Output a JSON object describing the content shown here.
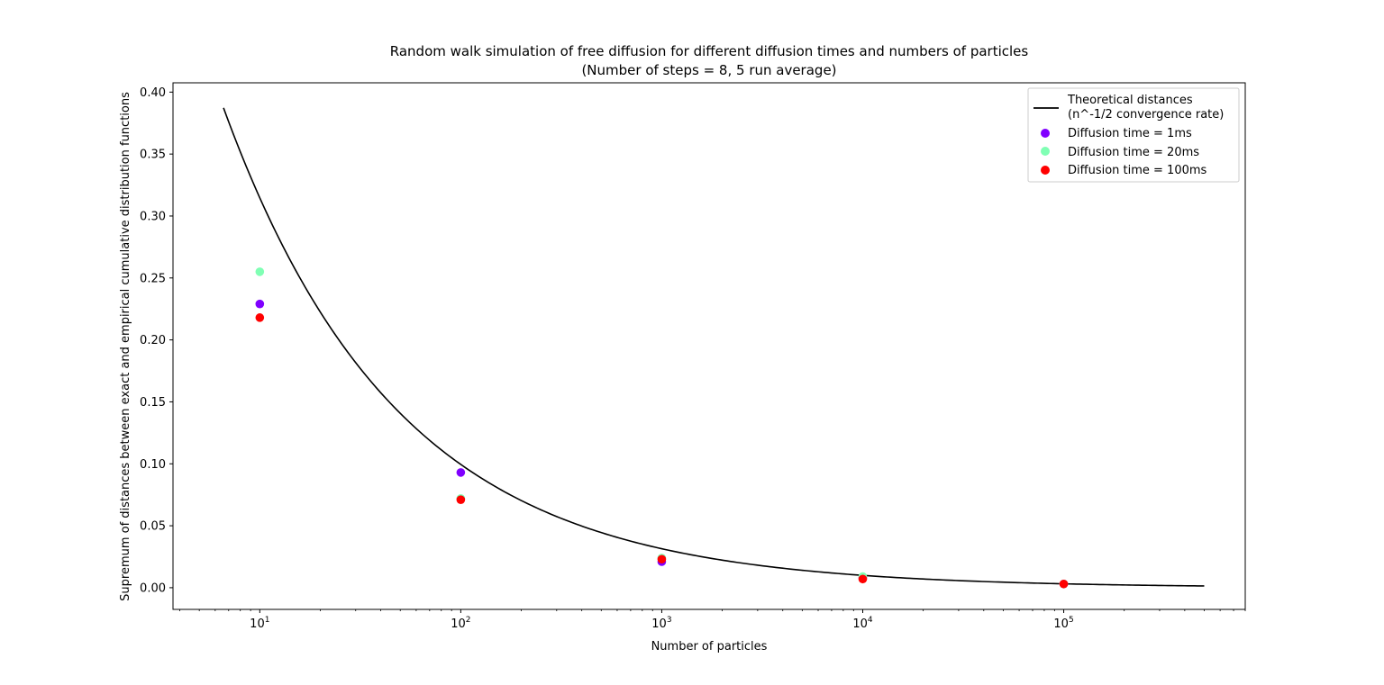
{
  "chart_data": {
    "type": "scatter",
    "title": "Random walk simulation of free diffusion for different diffusion times and numbers of particles",
    "subtitle": "(Number of steps = 8, 5 run average)",
    "xlabel": "Number of particles",
    "ylabel": "Supremum of distances between exact and empirical cumulative distribution functions",
    "xscale": "log",
    "xlim": [
      3.7,
      800000
    ],
    "ylim": [
      -0.0175,
      0.4075
    ],
    "xticks": [
      {
        "value": 10,
        "base": "10",
        "exp": "1"
      },
      {
        "value": 100,
        "base": "10",
        "exp": "2"
      },
      {
        "value": 1000,
        "base": "10",
        "exp": "3"
      },
      {
        "value": 10000,
        "base": "10",
        "exp": "4"
      },
      {
        "value": 100000,
        "base": "10",
        "exp": "5"
      }
    ],
    "yticks": [
      {
        "value": 0.0,
        "label": "0.00"
      },
      {
        "value": 0.05,
        "label": "0.05"
      },
      {
        "value": 0.1,
        "label": "0.10"
      },
      {
        "value": 0.15,
        "label": "0.15"
      },
      {
        "value": 0.2,
        "label": "0.20"
      },
      {
        "value": 0.25,
        "label": "0.25"
      },
      {
        "value": 0.3,
        "label": "0.30"
      },
      {
        "value": 0.35,
        "label": "0.35"
      },
      {
        "value": 0.4,
        "label": "0.40"
      }
    ],
    "theory_line": {
      "name_line1": "Theoretical distances",
      "name_line2": "(n^-1/2 convergence rate)",
      "color": "#000000",
      "x_range": [
        6.6,
        500000
      ],
      "coefficient": 0.995
    },
    "x": [
      10,
      100,
      1000,
      10000,
      100000
    ],
    "series": [
      {
        "name": "Diffusion time = 1ms",
        "color": "#8000ff",
        "values": [
          0.229,
          0.093,
          0.021,
          0.008,
          0.003
        ]
      },
      {
        "name": "Diffusion time = 20ms",
        "color": "#80ffb4",
        "values": [
          0.255,
          0.072,
          0.024,
          0.009,
          0.003
        ]
      },
      {
        "name": "Diffusion time = 100ms",
        "color": "#ff0000",
        "values": [
          0.218,
          0.071,
          0.023,
          0.007,
          0.003
        ]
      }
    ],
    "legend_position": "top-right",
    "grid": false
  }
}
